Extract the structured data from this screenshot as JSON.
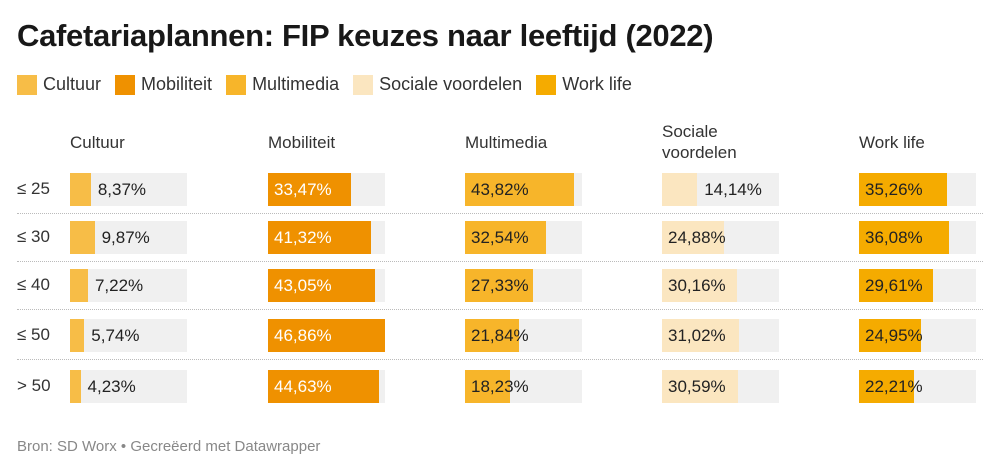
{
  "title": "Cafetariaplannen: FIP keuzes naar leeftijd (2022)",
  "footer": "Bron: SD Worx • Gecreëerd met Datawrapper",
  "chart_data": {
    "type": "table",
    "title": "Cafetariaplannen: FIP keuzes naar leeftijd (2022)",
    "columns": [
      {
        "name": "Cultuur",
        "color": "#f7bd47",
        "text": "#222"
      },
      {
        "name": "Mobiliteit",
        "color": "#ef9100",
        "text": "#fff"
      },
      {
        "name": "Multimedia",
        "color": "#f7b52a",
        "text": "#222"
      },
      {
        "name": "Sociale voordelen",
        "color": "#fbe6c0",
        "text": "#222"
      },
      {
        "name": "Work life",
        "color": "#f5ab00",
        "text": "#222"
      }
    ],
    "rows": [
      {
        "label": "≤ 25",
        "values": [
          8.37,
          33.47,
          43.82,
          14.14,
          35.26
        ],
        "labels": [
          "8,37%",
          "33,47%",
          "43,82%",
          "14,14%",
          "35,26%"
        ]
      },
      {
        "label": "≤ 30",
        "values": [
          9.87,
          41.32,
          32.54,
          24.88,
          36.08
        ],
        "labels": [
          "9,87%",
          "41,32%",
          "32,54%",
          "24,88%",
          "36,08%"
        ]
      },
      {
        "label": "≤ 40",
        "values": [
          7.22,
          43.05,
          27.33,
          30.16,
          29.61
        ],
        "labels": [
          "7,22%",
          "43,05%",
          "27,33%",
          "30,16%",
          "29,61%"
        ]
      },
      {
        "label": "≤ 50",
        "values": [
          5.74,
          46.86,
          21.84,
          31.02,
          24.95
        ],
        "labels": [
          "5,74%",
          "46,86%",
          "21,84%",
          "31,02%",
          "24,95%"
        ]
      },
      {
        "label": "> 50",
        "values": [
          4.23,
          44.63,
          18.23,
          30.59,
          22.21
        ],
        "labels": [
          "4,23%",
          "44,63%",
          "18,23%",
          "30,59%",
          "22,21%"
        ]
      }
    ],
    "max": 47
  }
}
